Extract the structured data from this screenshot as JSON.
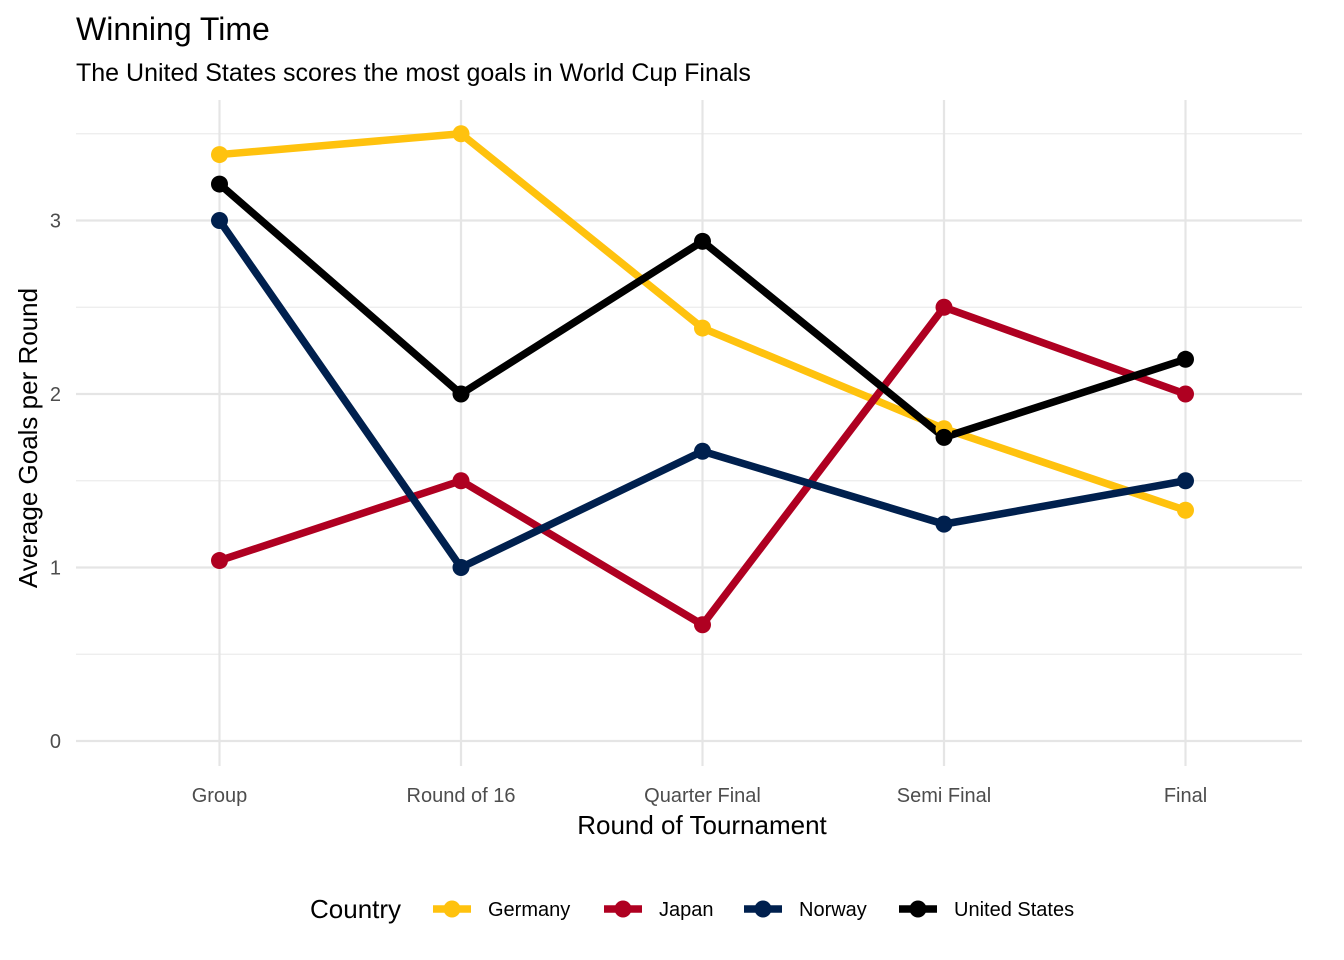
{
  "chart_data": {
    "type": "line",
    "title": "Winning Time",
    "subtitle": "The United States scores the most goals in World Cup Finals",
    "xlabel": "Round of Tournament",
    "ylabel": "Average Goals per Round",
    "categories": [
      "Group",
      "Round of 16",
      "Quarter Final",
      "Semi Final",
      "Final"
    ],
    "ylim": [
      -0.1,
      3.6
    ],
    "yticks": [
      0,
      1,
      2,
      3
    ],
    "grid": true,
    "legend": {
      "title": "Country",
      "position": "bottom"
    },
    "series": [
      {
        "name": "Germany",
        "color": "#FFC20E",
        "values": [
          3.38,
          3.5,
          2.38,
          1.8,
          1.33
        ]
      },
      {
        "name": "Japan",
        "color": "#AF0021",
        "values": [
          1.04,
          1.5,
          0.67,
          2.5,
          2.0
        ]
      },
      {
        "name": "Norway",
        "color": "#00204E",
        "values": [
          3.0,
          1.0,
          1.67,
          1.25,
          1.5
        ]
      },
      {
        "name": "United States",
        "color": "#000000",
        "values": [
          3.21,
          2.0,
          2.88,
          1.75,
          2.2
        ]
      }
    ]
  }
}
